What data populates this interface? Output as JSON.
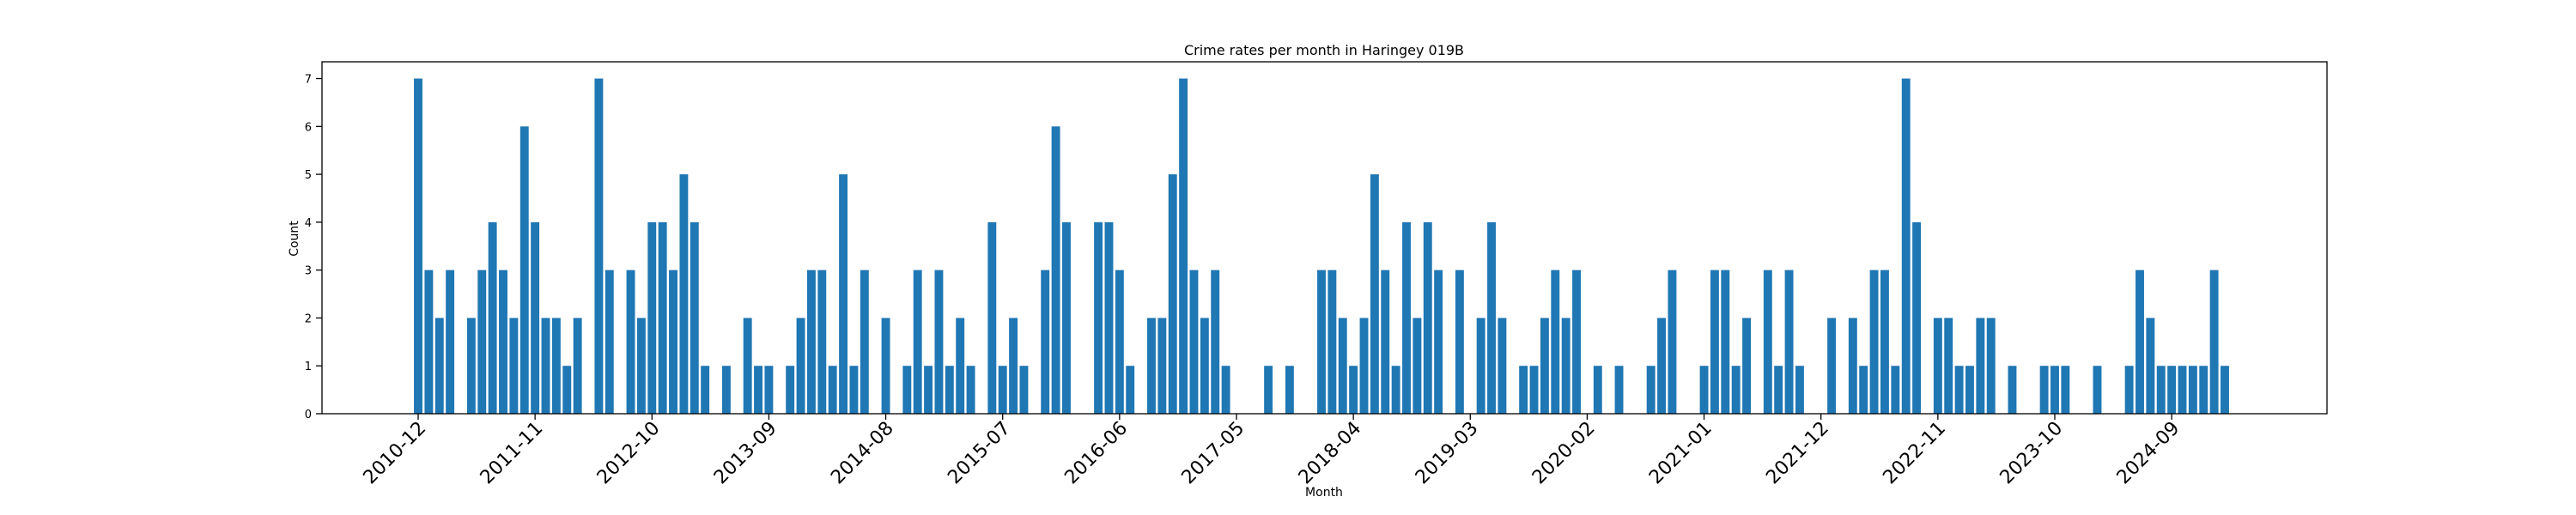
{
  "chart_data": {
    "type": "bar",
    "title": "Crime rates per month in Haringey 019B",
    "xlabel": "Month",
    "ylabel": "Count",
    "ylim": [
      0,
      7.35
    ],
    "yticks": [
      0,
      1,
      2,
      3,
      4,
      5,
      6,
      7
    ],
    "grid": false,
    "bar_color": "#1f77b4",
    "xticks": [
      "2010-12",
      "2011-11",
      "2012-10",
      "2013-09",
      "2014-08",
      "2015-07",
      "2016-06",
      "2017-05",
      "2018-04",
      "2019-03",
      "2020-02",
      "2021-01",
      "2021-12",
      "2022-11",
      "2023-10",
      "2024-09"
    ],
    "start_month": "2010-12",
    "values": [
      7,
      3,
      2,
      3,
      0,
      2,
      3,
      4,
      3,
      2,
      6,
      4,
      2,
      2,
      1,
      2,
      0,
      7,
      3,
      0,
      3,
      2,
      4,
      4,
      3,
      5,
      4,
      1,
      0,
      1,
      0,
      2,
      1,
      1,
      0,
      1,
      2,
      3,
      3,
      1,
      5,
      1,
      3,
      0,
      2,
      0,
      1,
      3,
      1,
      3,
      1,
      2,
      1,
      0,
      4,
      1,
      2,
      1,
      0,
      3,
      6,
      4,
      0,
      0,
      4,
      4,
      3,
      1,
      0,
      2,
      2,
      5,
      7,
      3,
      2,
      3,
      1,
      0,
      0,
      0,
      1,
      0,
      1,
      0,
      0,
      3,
      3,
      2,
      1,
      2,
      5,
      3,
      1,
      4,
      2,
      4,
      3,
      0,
      3,
      0,
      2,
      4,
      2,
      0,
      1,
      1,
      2,
      3,
      2,
      3,
      0,
      1,
      0,
      1,
      0,
      0,
      1,
      2,
      3,
      0,
      0,
      1,
      3,
      3,
      1,
      2,
      0,
      3,
      1,
      3,
      1,
      0,
      0,
      2,
      0,
      2,
      1,
      3,
      3,
      1,
      7,
      4,
      0,
      2,
      2,
      1,
      1,
      2,
      2,
      0,
      1,
      0,
      0,
      1,
      1,
      1,
      0,
      0,
      1,
      0,
      0,
      1,
      3,
      2,
      1,
      1,
      1,
      1,
      1,
      3,
      1
    ]
  }
}
